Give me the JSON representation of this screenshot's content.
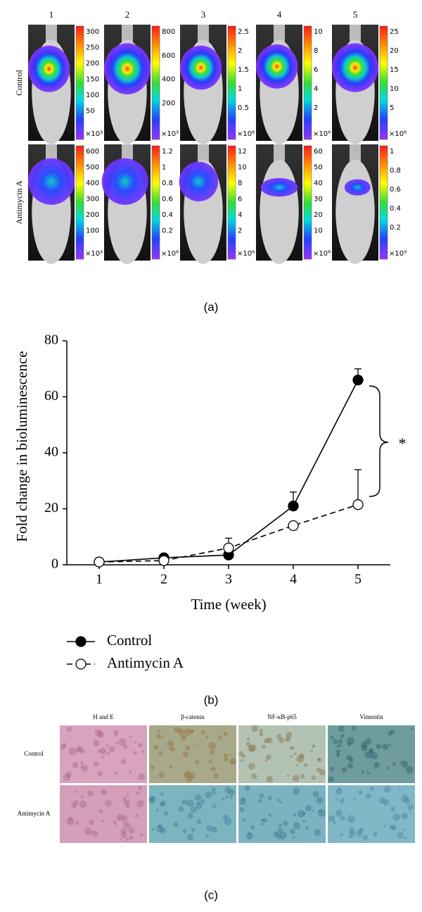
{
  "panel_a": {
    "caption": "(a)",
    "columns": [
      "1",
      "2",
      "3",
      "4",
      "5"
    ],
    "rows": [
      {
        "label": "Control",
        "scales": [
          {
            "ticks": [
              "300",
              "250",
              "200",
              "150",
              "100",
              "50"
            ],
            "unit": "×10³"
          },
          {
            "ticks": [
              "800",
              "600",
              "400",
              "200"
            ],
            "unit": "×10³"
          },
          {
            "ticks": [
              "2.5",
              "2",
              "1.5",
              "1",
              "0.5"
            ],
            "unit": "×10⁶"
          },
          {
            "ticks": [
              "10",
              "8",
              "6",
              "4",
              "2"
            ],
            "unit": "×10⁶"
          },
          {
            "ticks": [
              "25",
              "20",
              "15",
              "10",
              "5"
            ],
            "unit": "×10⁶"
          }
        ]
      },
      {
        "label": "Antimycin A",
        "scales": [
          {
            "ticks": [
              "600",
              "500",
              "400",
              "300",
              "200",
              "100"
            ],
            "unit": "×10³"
          },
          {
            "ticks": [
              "1.2",
              "1",
              "0.8",
              "0.6",
              "0.4",
              "0.2"
            ],
            "unit": "×10⁶"
          },
          {
            "ticks": [
              "12",
              "10",
              "8",
              "6",
              "4",
              "2"
            ],
            "unit": "×10⁶"
          },
          {
            "ticks": [
              "60",
              "50",
              "40",
              "30",
              "20",
              "10"
            ],
            "unit": "×10⁶"
          },
          {
            "ticks": [
              "1",
              "0.8",
              "0.6",
              "0.4",
              "0.2"
            ],
            "unit": "×10⁹"
          }
        ]
      }
    ]
  },
  "chart_data": {
    "type": "line",
    "caption": "(b)",
    "y_label": "Fold change in bioluminescence",
    "x_label": "Time (week)",
    "x": [
      1,
      2,
      3,
      4,
      5
    ],
    "xlim": [
      0.5,
      5.5
    ],
    "xticks": [
      1,
      2,
      3,
      4,
      5
    ],
    "ylim": [
      0,
      80
    ],
    "yticks": [
      0,
      20,
      40,
      60,
      80
    ],
    "series": [
      {
        "name": "Control",
        "color": "#000000",
        "marker_fill": "#000000",
        "dashed": false,
        "values": [
          1,
          2.5,
          3.5,
          21,
          66
        ],
        "errors": [
          0,
          1,
          0,
          5,
          4
        ]
      },
      {
        "name": "Antimycin A",
        "color": "#000000",
        "marker_fill": "#ffffff",
        "dashed": true,
        "values": [
          1,
          1.5,
          6,
          14,
          21.5
        ],
        "errors": [
          0,
          0,
          3.5,
          0,
          12.5
        ]
      }
    ],
    "annotation": "*"
  },
  "panel_c": {
    "caption": "(c)",
    "columns": [
      "H and E",
      "β-catenin",
      "NF-κB-p65",
      "Vimentin"
    ],
    "rows": [
      "Control",
      "Antimycin A"
    ]
  }
}
